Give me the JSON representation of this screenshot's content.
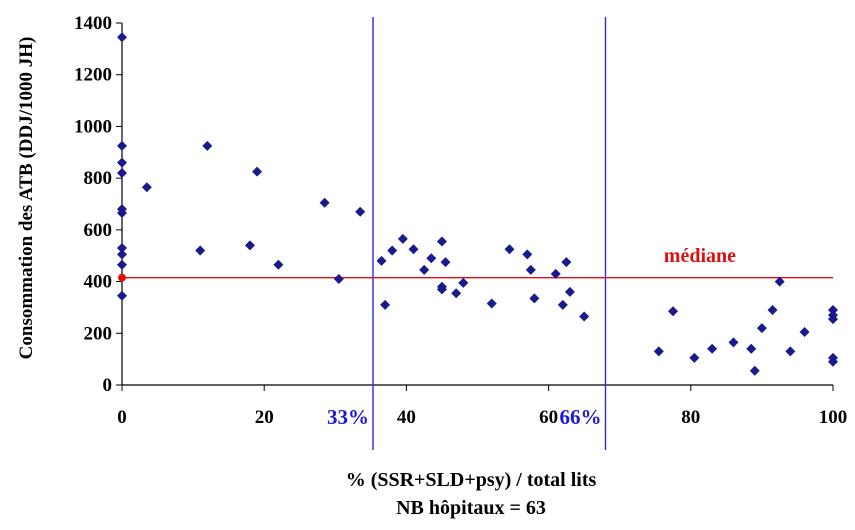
{
  "chart_data": {
    "type": "scatter",
    "ylabel": "Consommation des ATB (DDJ/1000 JH)",
    "xlabel": "% (SSR+SLD+psy) / total lits",
    "footnote": "NB hôpitaux = 63",
    "xlim": [
      0,
      100
    ],
    "ylim": [
      0,
      1400
    ],
    "x_ticks": [
      "0",
      "20",
      "40",
      "60",
      "80",
      "100"
    ],
    "y_ticks": [
      "0",
      "200",
      "400",
      "600",
      "800",
      "1000",
      "1200",
      "1400"
    ],
    "grid": false,
    "legend": "none",
    "marker_color": "#1a1a8c",
    "median": {
      "label": "médiane",
      "value": 415,
      "color": "#e01010"
    },
    "vertical_lines": [
      {
        "x": 35.3,
        "label": "33%",
        "color": "#2a2ae0"
      },
      {
        "x": 68.0,
        "label": "66%",
        "color": "#2a2ae0"
      }
    ],
    "highlight_point": {
      "x": 0,
      "y": 415,
      "color": "#e01010"
    },
    "points": [
      [
        0,
        1345
      ],
      [
        0,
        925
      ],
      [
        0,
        860
      ],
      [
        0,
        820
      ],
      [
        0,
        680
      ],
      [
        0,
        665
      ],
      [
        0,
        530
      ],
      [
        0,
        505
      ],
      [
        0,
        465
      ],
      [
        0,
        345
      ],
      [
        3.5,
        765
      ],
      [
        11,
        520
      ],
      [
        12,
        925
      ],
      [
        18,
        540
      ],
      [
        19,
        825
      ],
      [
        22,
        465
      ],
      [
        28.5,
        705
      ],
      [
        30.5,
        410
      ],
      [
        33.5,
        670
      ],
      [
        36.5,
        480
      ],
      [
        37,
        310
      ],
      [
        38,
        520
      ],
      [
        39.5,
        565
      ],
      [
        41,
        525
      ],
      [
        42.5,
        445
      ],
      [
        43.5,
        490
      ],
      [
        45,
        555
      ],
      [
        45,
        380
      ],
      [
        45,
        370
      ],
      [
        45.5,
        475
      ],
      [
        47,
        355
      ],
      [
        48,
        395
      ],
      [
        52,
        315
      ],
      [
        54.5,
        525
      ],
      [
        57,
        505
      ],
      [
        57.5,
        445
      ],
      [
        58,
        335
      ],
      [
        61,
        430
      ],
      [
        62,
        310
      ],
      [
        62.5,
        475
      ],
      [
        63,
        360
      ],
      [
        65,
        265
      ],
      [
        75.5,
        130
      ],
      [
        77.5,
        285
      ],
      [
        80.5,
        105
      ],
      [
        83,
        140
      ],
      [
        86,
        165
      ],
      [
        88.5,
        140
      ],
      [
        89,
        55
      ],
      [
        90,
        220
      ],
      [
        91.5,
        290
      ],
      [
        92.5,
        400
      ],
      [
        94,
        130
      ],
      [
        96,
        205
      ],
      [
        100,
        290
      ],
      [
        100,
        270
      ],
      [
        100,
        255
      ],
      [
        100,
        105
      ],
      [
        100,
        90
      ]
    ]
  }
}
